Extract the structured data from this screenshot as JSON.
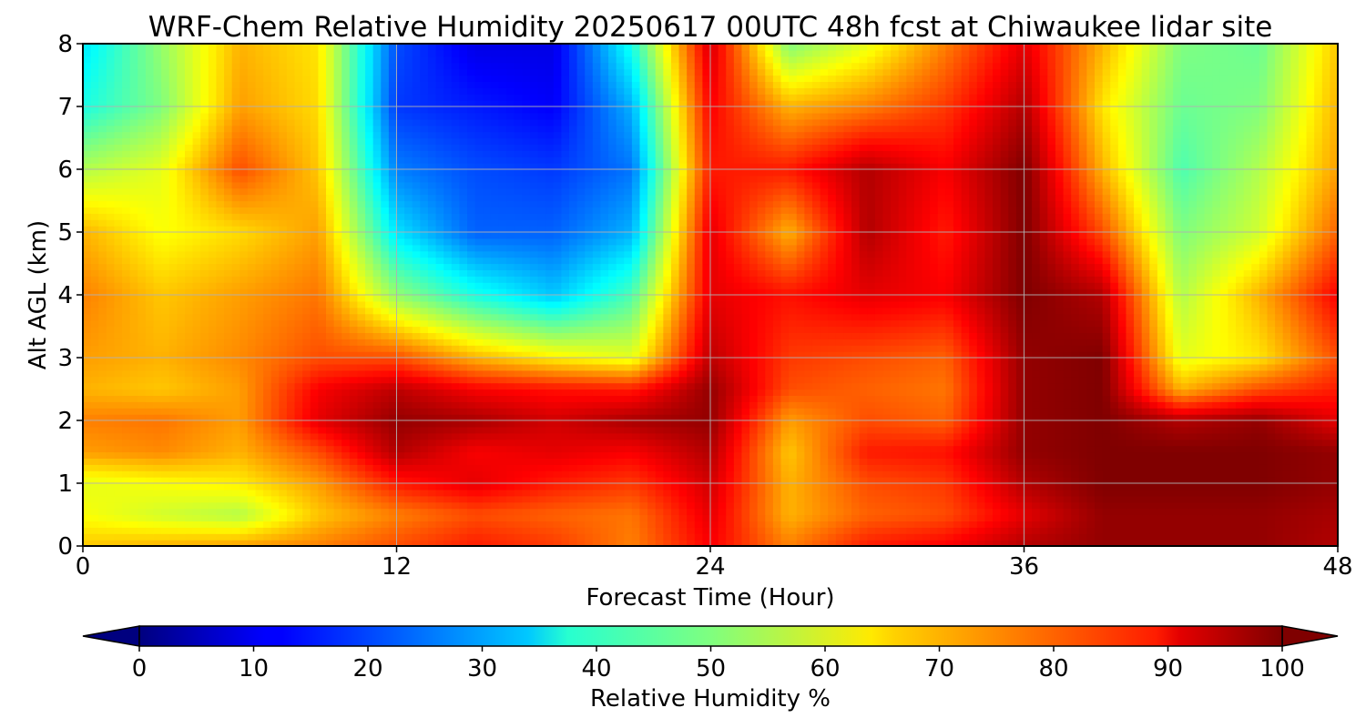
{
  "chart_data": {
    "type": "heatmap",
    "title": "WRF-Chem Relative Humidity 20250617 00UTC 48h fcst at Chiwaukee lidar site",
    "xlabel": "Forecast Time (Hour)",
    "ylabel": "Alt AGL (km)",
    "xlim": [
      0,
      48
    ],
    "ylim": [
      0,
      8
    ],
    "xticks": [
      0,
      12,
      24,
      36,
      48
    ],
    "yticks": [
      0,
      1,
      2,
      3,
      4,
      5,
      6,
      7,
      8
    ],
    "grid": true,
    "colormap": "jet",
    "x": [
      0,
      3,
      6,
      9,
      12,
      15,
      18,
      21,
      24,
      27,
      30,
      33,
      36,
      39,
      42,
      45,
      48
    ],
    "y": [
      0,
      0.5,
      1,
      1.5,
      2,
      2.5,
      3,
      4,
      5,
      6,
      7,
      8
    ],
    "z": [
      [
        68,
        70,
        72,
        75,
        80,
        85,
        82,
        75,
        88,
        75,
        85,
        88,
        95,
        98,
        98,
        98,
        95
      ],
      [
        62,
        58,
        55,
        68,
        75,
        80,
        78,
        76,
        90,
        70,
        78,
        80,
        90,
        98,
        98,
        98,
        96
      ],
      [
        60,
        62,
        64,
        72,
        85,
        90,
        85,
        82,
        92,
        70,
        80,
        82,
        95,
        100,
        100,
        100,
        98
      ],
      [
        72,
        74,
        70,
        80,
        95,
        88,
        90,
        88,
        95,
        68,
        85,
        86,
        98,
        100,
        100,
        100,
        98
      ],
      [
        75,
        76,
        72,
        90,
        98,
        96,
        92,
        96,
        98,
        72,
        80,
        78,
        98,
        100,
        95,
        98,
        90
      ],
      [
        70,
        68,
        72,
        88,
        94,
        88,
        86,
        85,
        98,
        80,
        78,
        76,
        98,
        100,
        70,
        80,
        85
      ],
      [
        72,
        70,
        74,
        80,
        80,
        70,
        64,
        60,
        94,
        82,
        80,
        78,
        98,
        100,
        60,
        65,
        80
      ],
      [
        75,
        68,
        72,
        76,
        52,
        40,
        32,
        45,
        90,
        86,
        90,
        88,
        100,
        95,
        55,
        70,
        88
      ],
      [
        70,
        62,
        66,
        72,
        35,
        22,
        22,
        30,
        90,
        70,
        95,
        85,
        100,
        80,
        50,
        58,
        78
      ],
      [
        55,
        60,
        80,
        68,
        25,
        20,
        18,
        24,
        85,
        85,
        95,
        88,
        100,
        70,
        45,
        55,
        72
      ],
      [
        40,
        50,
        72,
        66,
        18,
        15,
        12,
        30,
        88,
        70,
        75,
        82,
        95,
        65,
        48,
        50,
        70
      ],
      [
        35,
        52,
        70,
        65,
        20,
        10,
        10,
        40,
        92,
        50,
        60,
        75,
        90,
        70,
        50,
        48,
        68
      ]
    ],
    "colorbar": {
      "label": "Relative Humidity %",
      "min": 0,
      "max": 100,
      "ticks": [
        0,
        10,
        20,
        30,
        40,
        50,
        60,
        70,
        80,
        90,
        100
      ],
      "extend": "both"
    }
  }
}
